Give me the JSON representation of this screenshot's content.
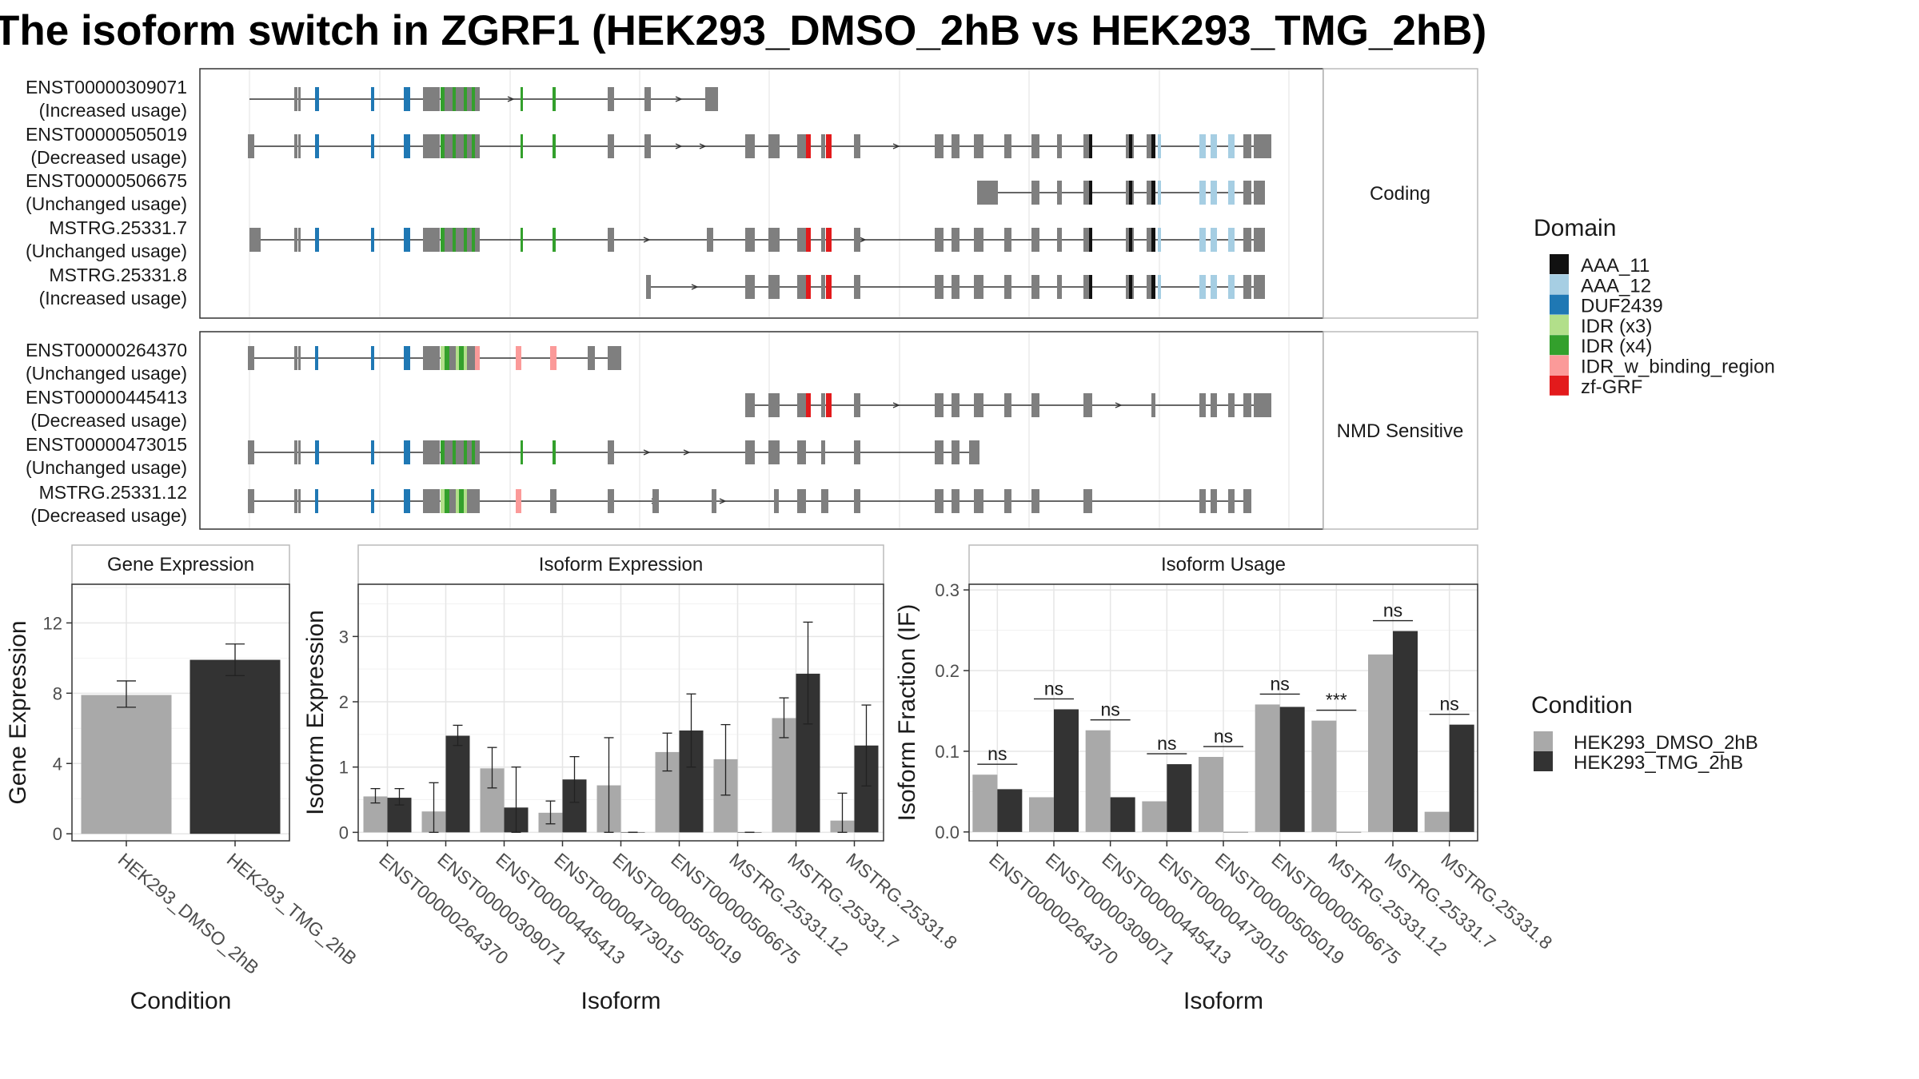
{
  "title": "The isoform switch in ZGRF1 (HEK293_DMSO_2hB vs HEK293_TMG_2hB)",
  "colors": {
    "dmso": "#a9a9a9",
    "tmg": "#333333",
    "exon": "#7f7f7f",
    "domains": {
      "AAA_11": "#111111",
      "AAA_12": "#a6cee3",
      "DUF2439": "#1f78b4",
      "IDR (x3)": "#b2df8a",
      "IDR (x4)": "#33a02c",
      "IDR_w_binding_region": "#fb9a99",
      "zf-GRF": "#e31a1c"
    }
  },
  "transcripts": {
    "panels": [
      {
        "strip": "Coding",
        "rows": [
          {
            "id": "ENST00000309071",
            "status": "(Increased usage)"
          },
          {
            "id": "ENST00000505019",
            "status": "(Decreased usage)"
          },
          {
            "id": "ENST00000506675",
            "status": "(Unchanged usage)"
          },
          {
            "id": "MSTRG.25331.7",
            "status": "(Unchanged usage)"
          },
          {
            "id": "MSTRG.25331.8",
            "status": "(Increased usage)"
          }
        ]
      },
      {
        "strip": "NMD Sensitive",
        "rows": [
          {
            "id": "ENST00000264370",
            "status": "(Unchanged usage)"
          },
          {
            "id": "ENST00000445413",
            "status": "(Decreased usage)"
          },
          {
            "id": "ENST00000473015",
            "status": "(Unchanged usage)"
          },
          {
            "id": "MSTRG.25331.12",
            "status": "(Decreased usage)"
          }
        ]
      }
    ]
  },
  "legend_domain": {
    "title": "Domain",
    "items": [
      "AAA_11",
      "AAA_12",
      "DUF2439",
      "IDR (x3)",
      "IDR (x4)",
      "IDR_w_binding_region",
      "zf-GRF"
    ]
  },
  "legend_condition": {
    "title": "Condition",
    "items": [
      "HEK293_DMSO_2hB",
      "HEK293_TMG_2hB"
    ]
  },
  "chart_data": [
    {
      "type": "bar",
      "title": "Gene Expression",
      "xlabel": "Condition",
      "ylabel": "Gene Expression",
      "categories": [
        "HEK293_DMSO_2hB",
        "HEK293_TMG_2hB"
      ],
      "values": [
        7.9,
        9.9
      ],
      "error_low": [
        7.2,
        9.0
      ],
      "error_high": [
        8.7,
        10.8
      ],
      "yticks": [
        0,
        4,
        8,
        12
      ],
      "ylim": [
        -0.4,
        14.2
      ]
    },
    {
      "type": "bar",
      "title": "Isoform Expression",
      "xlabel": "Isoform",
      "ylabel": "Isoform Expression",
      "categories": [
        "ENST00000264370",
        "ENST00000309071",
        "ENST00000445413",
        "ENST00000473015",
        "ENST00000505019",
        "ENST00000506675",
        "MSTRG.25331.12",
        "MSTRG.25331.7",
        "MSTRG.25331.8"
      ],
      "series": [
        {
          "name": "HEK293_DMSO_2hB",
          "values": [
            0.55,
            0.32,
            0.98,
            0.3,
            0.72,
            1.23,
            1.12,
            1.75,
            0.18
          ],
          "err_low": [
            0.45,
            0.0,
            0.68,
            0.13,
            0.0,
            0.94,
            0.57,
            1.45,
            0.0
          ],
          "err_high": [
            0.67,
            0.76,
            1.3,
            0.48,
            1.45,
            1.52,
            1.65,
            2.06,
            0.6
          ]
        },
        {
          "name": "HEK293_TMG_2hB",
          "values": [
            0.53,
            1.48,
            0.38,
            0.81,
            0.0,
            1.56,
            0.0,
            2.43,
            1.33
          ],
          "err_low": [
            0.42,
            1.33,
            0.0,
            0.46,
            0.0,
            1.0,
            0.0,
            1.66,
            0.71
          ],
          "err_high": [
            0.67,
            1.64,
            1.0,
            1.16,
            0.0,
            2.12,
            0.0,
            3.22,
            1.95
          ]
        }
      ],
      "yticks": [
        0,
        1,
        2,
        3
      ],
      "ylim": [
        -0.13,
        3.8
      ]
    },
    {
      "type": "bar",
      "title": "Isoform Usage",
      "xlabel": "Isoform",
      "ylabel": "Isoform Fraction (IF)",
      "categories": [
        "ENST00000264370",
        "ENST00000309071",
        "ENST00000445413",
        "ENST00000473015",
        "ENST00000505019",
        "ENST00000506675",
        "MSTRG.25331.12",
        "MSTRG.25331.7",
        "MSTRG.25331.8"
      ],
      "series": [
        {
          "name": "HEK293_DMSO_2hB",
          "values": [
            0.071,
            0.043,
            0.126,
            0.038,
            0.093,
            0.158,
            0.138,
            0.22,
            0.025
          ]
        },
        {
          "name": "HEK293_TMG_2hB",
          "values": [
            0.053,
            0.152,
            0.043,
            0.084,
            0.0,
            0.155,
            0.0,
            0.249,
            0.133
          ]
        }
      ],
      "significance": [
        "ns",
        "ns",
        "ns",
        "ns",
        "ns",
        "ns",
        "***",
        "ns",
        "ns"
      ],
      "yticks": [
        0.0,
        0.1,
        0.2,
        0.3
      ],
      "ytick_labels": [
        "0.0",
        "0.1",
        "0.2",
        "0.3"
      ],
      "ylim": [
        -0.011,
        0.307
      ]
    }
  ]
}
